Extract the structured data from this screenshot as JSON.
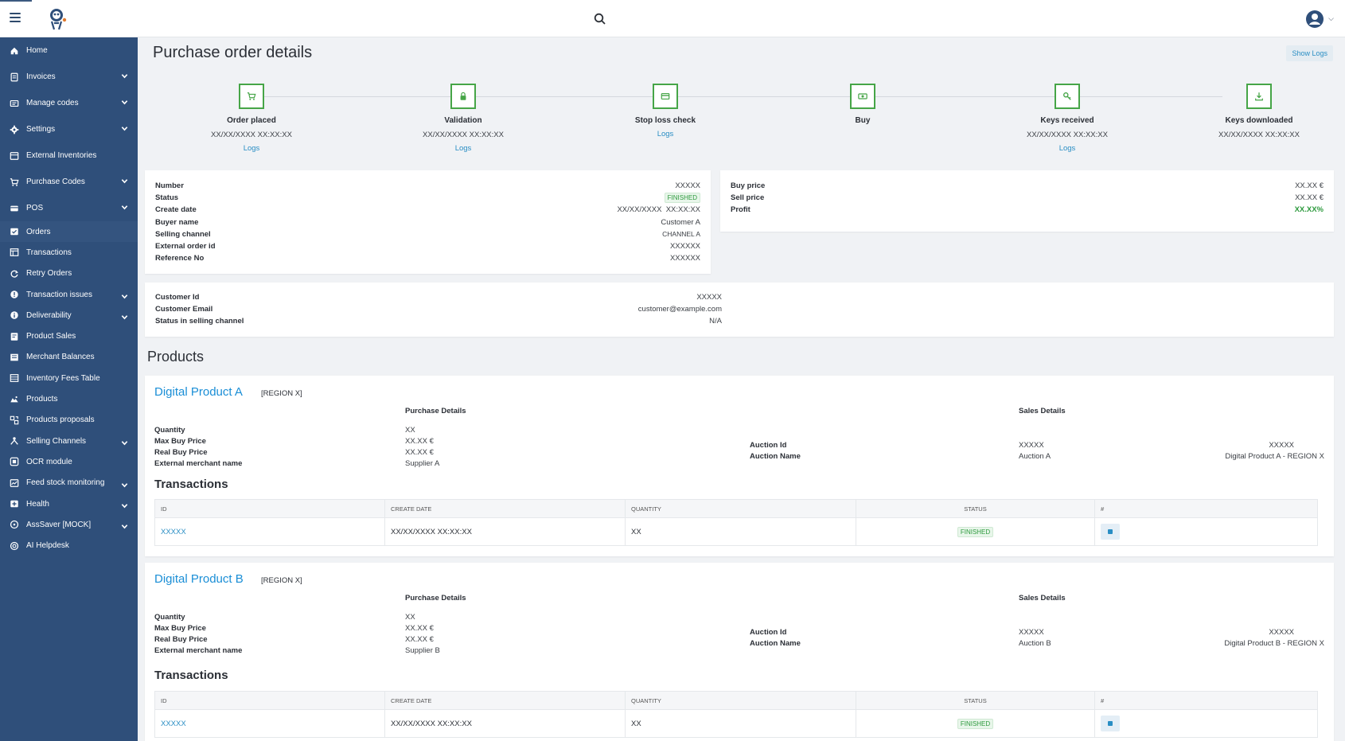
{
  "sidebar": {
    "items": [
      {
        "label": "Home",
        "icon": "home-icon",
        "chevron": false
      },
      {
        "label": "Invoices",
        "icon": "invoice-icon",
        "chevron": true
      },
      {
        "label": "Manage codes",
        "icon": "codes-icon",
        "chevron": true
      },
      {
        "label": "Settings",
        "icon": "gear-icon",
        "chevron": true
      },
      {
        "label": "External Inventories",
        "icon": "inventory-icon",
        "chevron": false
      },
      {
        "label": "Purchase Codes",
        "icon": "cart-icon",
        "chevron": true
      },
      {
        "label": "POS",
        "icon": "pos-icon",
        "chevron": true
      },
      {
        "label": "Orders",
        "icon": "orders-icon",
        "chevron": false
      },
      {
        "label": "Transactions",
        "icon": "transactions-icon",
        "chevron": false
      },
      {
        "label": "Retry Orders",
        "icon": "retry-icon",
        "chevron": false
      },
      {
        "label": "Transaction issues",
        "icon": "alert-icon",
        "chevron": true
      },
      {
        "label": "Deliverability",
        "icon": "deliverability-icon",
        "chevron": true
      },
      {
        "label": "Product Sales",
        "icon": "sales-icon",
        "chevron": false
      },
      {
        "label": "Merchant Balances",
        "icon": "balance-icon",
        "chevron": false
      },
      {
        "label": "Inventory Fees Table",
        "icon": "table-icon",
        "chevron": false
      },
      {
        "label": "Products",
        "icon": "products-icon",
        "chevron": false
      },
      {
        "label": "Products proposals",
        "icon": "proposals-icon",
        "chevron": false
      },
      {
        "label": "Selling Channels",
        "icon": "channels-icon",
        "chevron": true
      },
      {
        "label": "OCR module",
        "icon": "ocr-icon",
        "chevron": false
      },
      {
        "label": "Feed stock monitoring",
        "icon": "feed-icon",
        "chevron": true
      },
      {
        "label": "Health",
        "icon": "health-icon",
        "chevron": true
      },
      {
        "label": "AssSaver [MOCK]",
        "icon": "saver-icon",
        "chevron": true
      },
      {
        "label": "AI Helpdesk",
        "icon": "helpdesk-icon",
        "chevron": false
      }
    ]
  },
  "header": {
    "title": "Purchase order details",
    "show_logs": "Show Logs"
  },
  "steps": [
    {
      "label": "Order placed",
      "date": "XX/XX/XXXX XX:XX:XX",
      "link": "Logs",
      "icon": "cart-icon"
    },
    {
      "label": "Validation",
      "date": "XX/XX/XXXX XX:XX:XX",
      "link": "Logs",
      "icon": "lock-icon"
    },
    {
      "label": "Stop loss check",
      "date": "",
      "link": "Logs",
      "icon": "card-icon"
    },
    {
      "label": "Buy",
      "date": "",
      "link": "",
      "icon": "money-icon"
    },
    {
      "label": "Keys received",
      "date": "XX/XX/XXXX XX:XX:XX",
      "link": "Logs",
      "icon": "key-icon"
    },
    {
      "label": "Keys downloaded",
      "date": "XX/XX/XXXX XX:XX:XX",
      "link": "",
      "icon": "download-icon"
    }
  ],
  "order_info": {
    "number_label": "Number",
    "number": "XXXXX",
    "status_label": "Status",
    "status": "FINISHED",
    "create_date_label": "Create date",
    "create_date": "XX/XX/XXXX  XX:XX:XX",
    "buyer_label": "Buyer name",
    "buyer": "Customer A",
    "channel_label": "Selling channel",
    "channel": "CHANNEL A",
    "external_label": "External order id",
    "external": "XXXXXX",
    "reference_label": "Reference No",
    "reference": "XXXXXX"
  },
  "prices": {
    "buy_label": "Buy price",
    "buy": "XX.XX €",
    "sell_label": "Sell price",
    "sell": "XX.XX €",
    "profit_label": "Profit",
    "profit": "XX.XX%"
  },
  "customer": {
    "id_label": "Customer Id",
    "id": "XXXXX",
    "email_label": "Customer Email",
    "email": "customer@example.com",
    "status_label": "Status in selling channel",
    "status": "N/A"
  },
  "products_title": "Products",
  "products": [
    {
      "name": "Digital Product A",
      "region": "[REGION X]",
      "purchase_details": "Purchase Details",
      "sales_details": "Sales Details",
      "quantity_label": "Quantity",
      "quantity": "XX",
      "max_buy_label": "Max Buy Price",
      "max_buy": "XX.XX €",
      "real_buy_label": "Real Buy Price",
      "real_buy": "XX.XX €",
      "merchant_label": "External merchant name",
      "merchant": "Supplier A",
      "auction_id_label": "Auction Id",
      "auction_id": "XXXXX",
      "auction_id_link": "XXXXX",
      "auction_name_label": "Auction Name",
      "auction_name": "Auction A",
      "auction_product": "Digital Product A - REGION X",
      "tx_title": "Transactions",
      "tx_headers": [
        "ID",
        "CREATE DATE",
        "QUANTITY",
        "STATUS",
        "#"
      ],
      "tx_row": {
        "id": "XXXXX",
        "date": "XX/XX/XXXX XX:XX:XX",
        "quantity": "XX",
        "status": "FINISHED"
      }
    },
    {
      "name": "Digital Product B",
      "region": "[REGION X]",
      "purchase_details": "Purchase Details",
      "sales_details": "Sales Details",
      "quantity_label": "Quantity",
      "quantity": "XX",
      "max_buy_label": "Max Buy Price",
      "max_buy": "XX.XX €",
      "real_buy_label": "Real Buy Price",
      "real_buy": "XX.XX €",
      "merchant_label": "External merchant name",
      "merchant": "Supplier B",
      "auction_id_label": "Auction Id",
      "auction_id": "XXXXX",
      "auction_id_link": "XXXXX",
      "auction_name_label": "Auction Name",
      "auction_name": "Auction B",
      "auction_product": "Digital Product B - REGION X",
      "tx_title": "Transactions",
      "tx_headers": [
        "ID",
        "CREATE DATE",
        "QUANTITY",
        "STATUS",
        "#"
      ],
      "tx_row": {
        "id": "XXXXX",
        "date": "XX/XX/XXXX XX:XX:XX",
        "quantity": "XX",
        "status": "FINISHED"
      }
    }
  ]
}
